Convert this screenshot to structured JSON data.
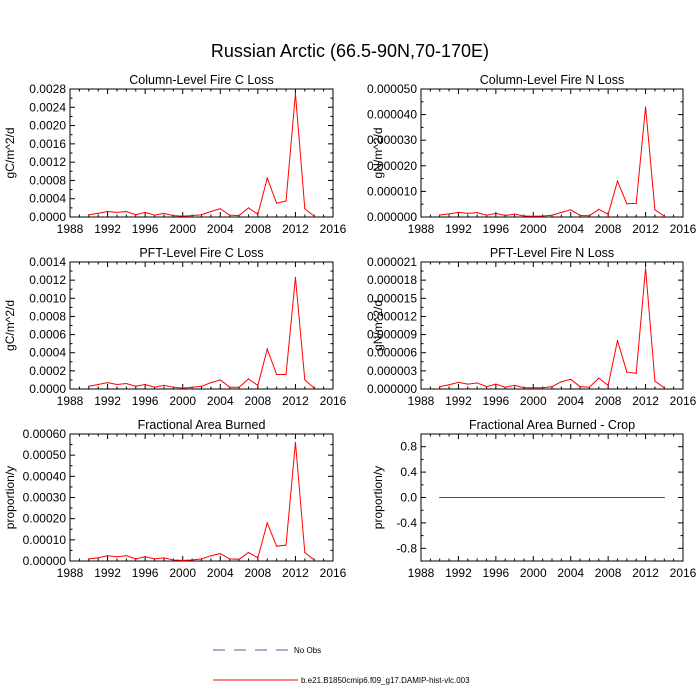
{
  "title": "Russian Arctic (66.5-90N,70-170E)",
  "legend": [
    {
      "label": "No Obs",
      "color": "#5a5aa0",
      "dash": true
    },
    {
      "label": "b.e21.B1850cmip6.f09_g17.DAMIP-hist-vlc.003",
      "color": "#ff0000",
      "dash": false
    }
  ],
  "chart_data": [
    {
      "type": "line",
      "title": "Column-Level Fire C Loss",
      "ylabel": "gC/m^2/d",
      "xlim": [
        1988,
        2016
      ],
      "ylim": [
        0,
        0.0028
      ],
      "xticks": [
        "1988",
        "1992",
        "1996",
        "2000",
        "2004",
        "2008",
        "2012",
        "2016"
      ],
      "yticks": [
        "0.0000",
        "0.0004",
        "0.0008",
        "0.0012",
        "0.0016",
        "0.0020",
        "0.0024",
        "0.0028"
      ],
      "x": [
        1990,
        1991,
        1992,
        1993,
        1994,
        1995,
        1996,
        1997,
        1998,
        1999,
        2000,
        2001,
        2002,
        2003,
        2004,
        2005,
        2006,
        2007,
        2008,
        2009,
        2010,
        2011,
        2012,
        2013,
        2014
      ],
      "series": [
        {
          "values": [
            5e-05,
            8e-05,
            0.00012,
            0.0001,
            0.00012,
            5e-05,
            0.0001,
            4e-05,
            8e-05,
            3e-05,
            2e-05,
            3e-05,
            5e-05,
            0.00012,
            0.00018,
            4e-05,
            3e-05,
            0.0002,
            6e-05,
            0.00085,
            0.0003,
            0.00035,
            0.0027,
            0.00018,
            2e-05
          ]
        }
      ]
    },
    {
      "type": "line",
      "title": "Column-Level Fire N Loss",
      "ylabel": "gN/m^2/d",
      "xlim": [
        1988,
        2016
      ],
      "ylim": [
        0,
        5e-05
      ],
      "xticks": [
        "1988",
        "1992",
        "1996",
        "2000",
        "2004",
        "2008",
        "2012",
        "2016"
      ],
      "yticks": [
        "0.000000",
        "0.000010",
        "0.000020",
        "0.000030",
        "0.000040",
        "0.000050"
      ],
      "x": [
        1990,
        1991,
        1992,
        1993,
        1994,
        1995,
        1996,
        1997,
        1998,
        1999,
        2000,
        2001,
        2002,
        2003,
        2004,
        2005,
        2006,
        2007,
        2008,
        2009,
        2010,
        2011,
        2012,
        2013,
        2014
      ],
      "series": [
        {
          "values": [
            8e-07,
            1.2e-06,
            1.8e-06,
            1.4e-06,
            1.7e-06,
            7e-07,
            1.4e-06,
            6e-07,
            1.1e-06,
            4e-07,
            3e-07,
            4e-07,
            7e-07,
            1.8e-06,
            2.8e-06,
            6e-07,
            5e-07,
            3e-06,
            1e-06,
            1.4e-05,
            5.2e-06,
            5.3e-06,
            4.3e-05,
            2.8e-06,
            3e-07
          ]
        }
      ]
    },
    {
      "type": "line",
      "title": "PFT-Level Fire C Loss",
      "ylabel": "gC/m^2/d",
      "xlim": [
        1988,
        2016
      ],
      "ylim": [
        0,
        0.0014
      ],
      "xticks": [
        "1988",
        "1992",
        "1996",
        "2000",
        "2004",
        "2008",
        "2012",
        "2016"
      ],
      "yticks": [
        "0.0000",
        "0.0002",
        "0.0004",
        "0.0006",
        "0.0008",
        "0.0010",
        "0.0012",
        "0.0014"
      ],
      "x": [
        1990,
        1991,
        1992,
        1993,
        1994,
        1995,
        1996,
        1997,
        1998,
        1999,
        2000,
        2001,
        2002,
        2003,
        2004,
        2005,
        2006,
        2007,
        2008,
        2009,
        2010,
        2011,
        2012,
        2013,
        2014
      ],
      "series": [
        {
          "values": [
            3e-05,
            5e-05,
            7e-05,
            5e-05,
            6e-05,
            3e-05,
            5e-05,
            2e-05,
            4e-05,
            2e-05,
            1e-05,
            2e-05,
            3e-05,
            7e-05,
            0.0001,
            2e-05,
            2e-05,
            0.00011,
            4e-05,
            0.00044,
            0.00016,
            0.00016,
            0.00123,
            0.0001,
            1e-05
          ]
        }
      ]
    },
    {
      "type": "line",
      "title": "PFT-Level Fire N Loss",
      "ylabel": "gN/m^2/d",
      "xlim": [
        1988,
        2016
      ],
      "ylim": [
        0,
        2.1e-05
      ],
      "xticks": [
        "1988",
        "1992",
        "1996",
        "2000",
        "2004",
        "2008",
        "2012",
        "2016"
      ],
      "yticks": [
        "0.000000",
        "0.000003",
        "0.000006",
        "0.000009",
        "0.000012",
        "0.000015",
        "0.000018",
        "0.000021"
      ],
      "x": [
        1990,
        1991,
        1992,
        1993,
        1994,
        1995,
        1996,
        1997,
        1998,
        1999,
        2000,
        2001,
        2002,
        2003,
        2004,
        2005,
        2006,
        2007,
        2008,
        2009,
        2010,
        2011,
        2012,
        2013,
        2014
      ],
      "series": [
        {
          "values": [
            4e-07,
            7e-07,
            1.1e-06,
            8e-07,
            1e-06,
            4e-07,
            8e-07,
            3e-07,
            6e-07,
            2e-07,
            2e-07,
            2e-07,
            4e-07,
            1.2e-06,
            1.6e-06,
            4e-07,
            3e-07,
            1.8e-06,
            6e-07,
            8e-06,
            2.8e-06,
            2.6e-06,
            2e-05,
            1.3e-06,
            2e-07
          ]
        }
      ]
    },
    {
      "type": "line",
      "title": "Fractional Area Burned",
      "ylabel": "proportion/y",
      "xlim": [
        1988,
        2016
      ],
      "ylim": [
        0,
        0.0006
      ],
      "xticks": [
        "1988",
        "1992",
        "1996",
        "2000",
        "2004",
        "2008",
        "2012",
        "2016"
      ],
      "yticks": [
        "0.00000",
        "0.00010",
        "0.00020",
        "0.00030",
        "0.00040",
        "0.00050",
        "0.00060"
      ],
      "x": [
        1990,
        1991,
        1992,
        1993,
        1994,
        1995,
        1996,
        1997,
        1998,
        1999,
        2000,
        2001,
        2002,
        2003,
        2004,
        2005,
        2006,
        2007,
        2008,
        2009,
        2010,
        2011,
        2012,
        2013,
        2014
      ],
      "series": [
        {
          "values": [
            1e-05,
            1.5e-05,
            2.5e-05,
            2e-05,
            2.5e-05,
            1e-05,
            2e-05,
            1e-05,
            1.5e-05,
            5e-06,
            3e-06,
            5e-06,
            1e-05,
            2.5e-05,
            3.5e-05,
            1e-05,
            8e-06,
            4e-05,
            1.5e-05,
            0.00018,
            7e-05,
            7.5e-05,
            0.00056,
            4e-05,
            5e-06
          ]
        }
      ]
    },
    {
      "type": "line",
      "title": "Fractional Area Burned - Crop",
      "ylabel": "proportion/y",
      "xlim": [
        1988,
        2016
      ],
      "ylim": [
        -1,
        1
      ],
      "xticks": [
        "1988",
        "1992",
        "1996",
        "2000",
        "2004",
        "2008",
        "2012",
        "2016"
      ],
      "yticks": [
        "-0.8",
        "-0.4",
        "0.0",
        "0.4",
        "0.8"
      ],
      "ytick_values": [
        -0.8,
        -0.4,
        0,
        0.4,
        0.8
      ],
      "x": [
        1990,
        2014
      ],
      "series": [
        {
          "values": [
            0,
            0
          ]
        }
      ]
    }
  ]
}
